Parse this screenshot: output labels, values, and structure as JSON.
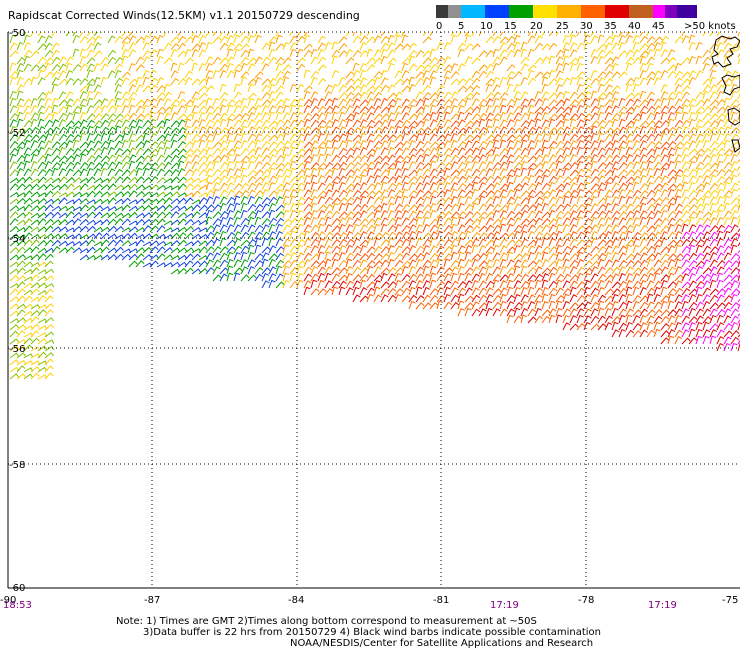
{
  "title": "Rapidscat Corrected Winds(12.5KM) v1.1 20150729 descending",
  "legend": {
    "labels": [
      "0",
      "5",
      "10",
      "15",
      "20",
      "25",
      "30",
      "35",
      "40",
      "45",
      ">50 knots"
    ],
    "colors": [
      "#3a3a3a",
      "#909090",
      "#00b8ff",
      "#0040ff",
      "#00a000",
      "#ffe000",
      "#ffb000",
      "#ff6000",
      "#e00000",
      "#c06020",
      "#ff00ff",
      "#8000c0",
      "#4000a0"
    ]
  },
  "axes": {
    "lat_labels": [
      "-50",
      "-52",
      "-54",
      "-56",
      "-58",
      "-60"
    ],
    "lon_labels": [
      "-90",
      "-87",
      "-84",
      "-81",
      "-78",
      "-75"
    ]
  },
  "times": [
    "18:53",
    "17:19",
    "17:19"
  ],
  "notes": [
    "Note: 1) Times are GMT 2)Times along bottom correspond to measurement at ~50S",
    "3)Data buffer is 22 hrs from 20150729 4) Black wind barbs indicate possible contamination",
    "NOAA/NESDIS/Center for Satellite Applications and Research"
  ]
}
